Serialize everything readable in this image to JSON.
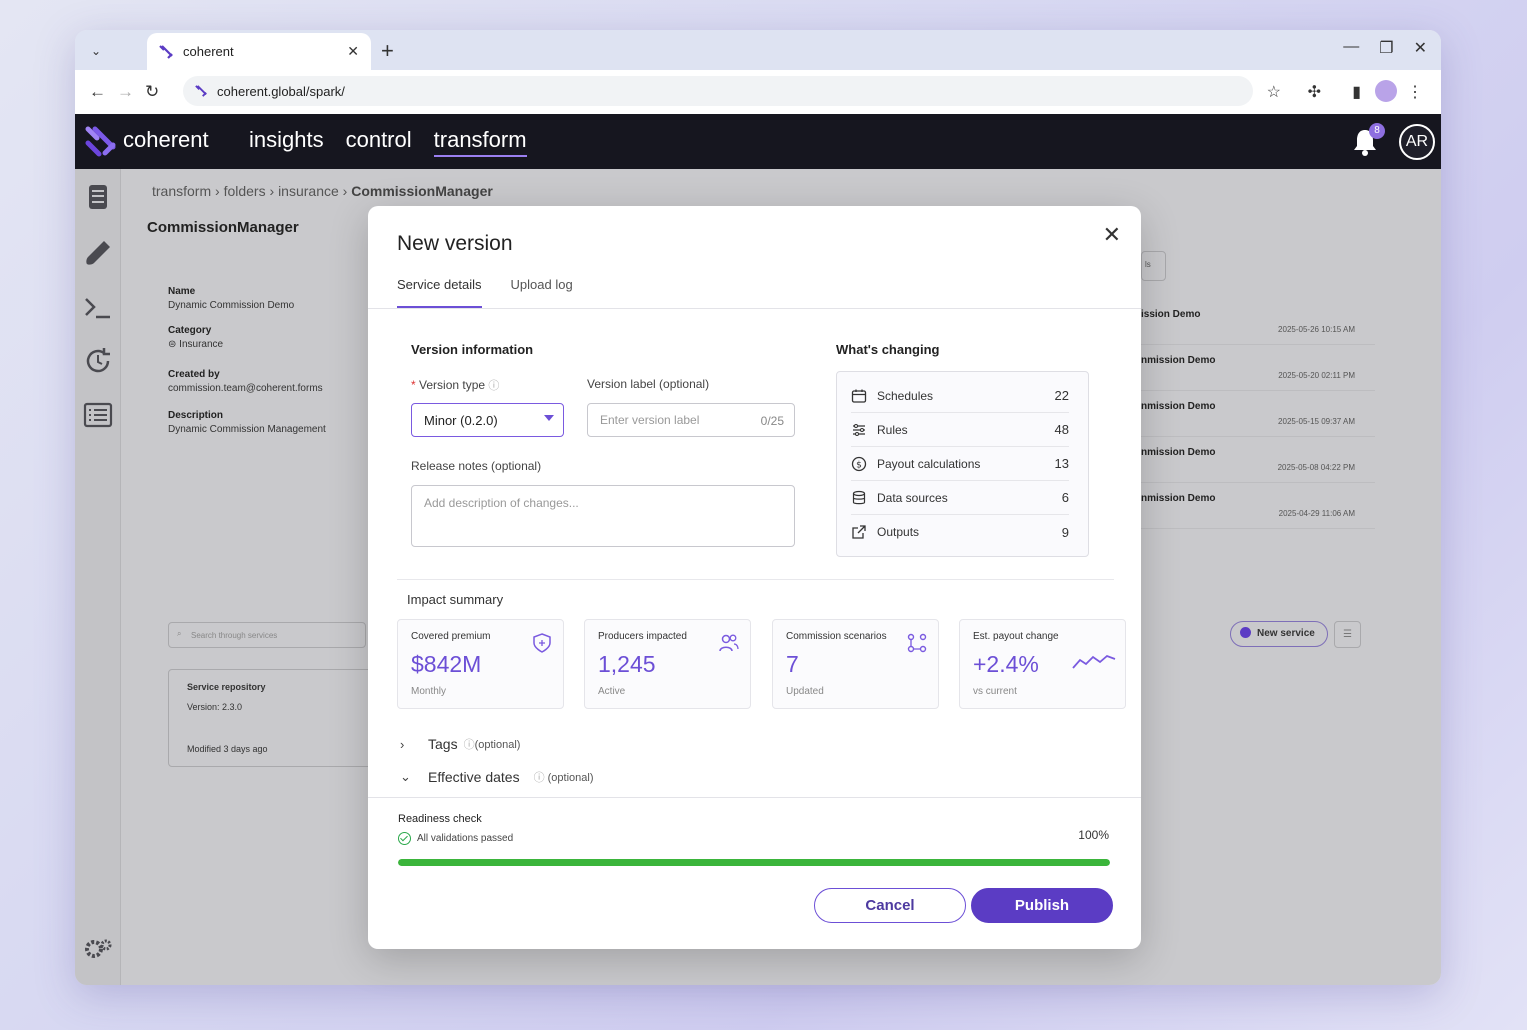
{
  "browser": {
    "tab_title": "coherent",
    "url": "coherent.global/spark/"
  },
  "app": {
    "brand": "coherent",
    "nav": [
      "insights",
      "control",
      "transform"
    ],
    "active_nav": "transform",
    "notification_count": "8",
    "user_initials": "AR",
    "accent": "#6c4fd6"
  },
  "breadcrumb": [
    "transform",
    "folders",
    "insurance",
    "CommissionManager"
  ],
  "background": {
    "title": "CommissionManager",
    "meta": [
      {
        "k": "Name",
        "v": "Dynamic Commission Demo"
      },
      {
        "k": "Category",
        "v": "Insurance"
      },
      {
        "k": "Created by",
        "v": "commission.team@coherent.forms"
      },
      {
        "k": "Description",
        "v": "Dynamic Commission Management"
      }
    ],
    "search_placeholder": "Search through services",
    "card": {
      "title": "Service repository",
      "version": "Version: 2.3.0",
      "modified": "Modified 3 days ago"
    },
    "edge_button": "ls",
    "rows": [
      {
        "name": "ission Demo",
        "date": "2025-05-26 10:15 AM"
      },
      {
        "name": "nmission Demo",
        "date": "2025-05-20 02:11 PM"
      },
      {
        "name": "nmission Demo",
        "date": "2025-05-15 09:37 AM"
      },
      {
        "name": "nmission Demo",
        "date": "2025-05-08 04:22 PM"
      },
      {
        "name": "nmission Demo",
        "date": "2025-04-29 11:06 AM"
      }
    ],
    "new_service": "New service"
  },
  "modal": {
    "title": "New version",
    "tabs": [
      "Service details",
      "Upload log"
    ],
    "version_info": "Version information",
    "version_type_label": "Version type",
    "version_type_value": "Minor (0.2.0)",
    "version_label_label": "Version label (optional)",
    "version_label_placeholder": "Enter version label",
    "version_label_count": "0/25",
    "release_notes_label": "Release notes  (optional)",
    "release_notes_placeholder": "Add description of changes...",
    "whats_changing": "What's changing",
    "changes": [
      {
        "name": "Schedules",
        "value": "22",
        "icon": "calendar-icon"
      },
      {
        "name": "Rules",
        "value": "48",
        "icon": "sliders-icon"
      },
      {
        "name": "Payout calculations",
        "value": "13",
        "icon": "dollar-icon"
      },
      {
        "name": "Data sources",
        "value": "6",
        "icon": "database-icon"
      },
      {
        "name": "Outputs",
        "value": "9",
        "icon": "external-link-icon"
      }
    ],
    "impact_summary": "Impact summary",
    "cards": [
      {
        "title": "Covered premium",
        "value": "$842M",
        "sub": "Monthly",
        "icon": "shield-icon"
      },
      {
        "title": "Producers impacted",
        "value": "1,245",
        "sub": "Active",
        "icon": "users-icon"
      },
      {
        "title": "Commission scenarios",
        "value": "7",
        "sub": "Updated",
        "icon": "flow-icon"
      },
      {
        "title": "Est. payout change",
        "value": "+2.4%",
        "sub": "vs current",
        "icon": "trend-icon"
      }
    ],
    "tags": {
      "label": "Tags",
      "opt": "(optional)"
    },
    "effective_dates": {
      "label": "Effective dates",
      "opt": "(optional)"
    },
    "readiness_title": "Readiness check",
    "readiness_status": "All validations passed",
    "readiness_pct": "100%",
    "readiness_progress": 1.0,
    "cancel": "Cancel",
    "publish": "Publish"
  }
}
